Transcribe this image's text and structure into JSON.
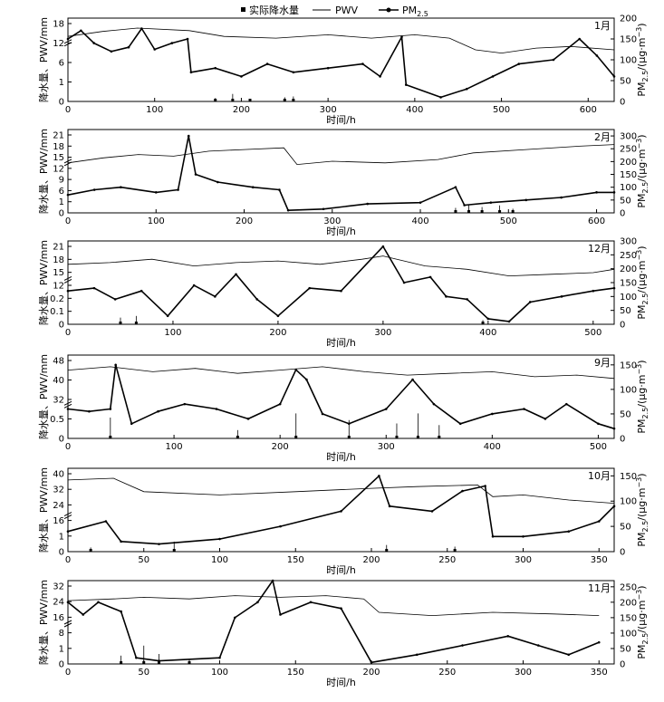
{
  "legend": {
    "items": [
      {
        "label": "实际降水量",
        "marker": "square"
      },
      {
        "label": "PWV",
        "marker": "line"
      },
      {
        "label": "PM",
        "sub": "2.5",
        "marker": "line-dot"
      }
    ]
  },
  "labels": {
    "xlabel": "时间/h",
    "ylabel_left": "降水量、PWV/mm",
    "ylabel_right_pre": "PM",
    "ylabel_right_sub": "2.5",
    "ylabel_right_post": "/(μg·m",
    "ylabel_right_sup": "−3",
    "ylabel_right_end": ")"
  },
  "colors": {
    "line": "#000000",
    "background": "#ffffff"
  },
  "chart_data": [
    {
      "type": "line",
      "month": "1月",
      "xlim": [
        0,
        630
      ],
      "xticks": [
        0,
        100,
        200,
        300,
        400,
        500,
        600
      ],
      "left_ticks": [
        "0",
        "1",
        "6",
        "12",
        "18"
      ],
      "right_ylim": [
        0,
        200
      ],
      "right_ticks": [
        0,
        50,
        100,
        150,
        200
      ],
      "pwv_level": 0.72,
      "pwv": [
        [
          0,
          0.78
        ],
        [
          40,
          0.84
        ],
        [
          80,
          0.88
        ],
        [
          140,
          0.85
        ],
        [
          180,
          0.78
        ],
        [
          240,
          0.76
        ],
        [
          300,
          0.8
        ],
        [
          350,
          0.76
        ],
        [
          400,
          0.8
        ],
        [
          440,
          0.76
        ],
        [
          470,
          0.62
        ],
        [
          500,
          0.58
        ],
        [
          540,
          0.64
        ],
        [
          580,
          0.66
        ],
        [
          630,
          0.62
        ]
      ],
      "pm25": [
        [
          0,
          150
        ],
        [
          15,
          170
        ],
        [
          30,
          140
        ],
        [
          50,
          120
        ],
        [
          70,
          130
        ],
        [
          85,
          175
        ],
        [
          100,
          125
        ],
        [
          120,
          140
        ],
        [
          138,
          150
        ],
        [
          142,
          70
        ],
        [
          170,
          80
        ],
        [
          200,
          60
        ],
        [
          230,
          90
        ],
        [
          260,
          70
        ],
        [
          300,
          80
        ],
        [
          340,
          90
        ],
        [
          360,
          60
        ],
        [
          385,
          155
        ],
        [
          390,
          40
        ],
        [
          430,
          10
        ],
        [
          460,
          30
        ],
        [
          490,
          60
        ],
        [
          520,
          90
        ],
        [
          560,
          100
        ],
        [
          590,
          150
        ],
        [
          610,
          110
        ],
        [
          630,
          60
        ]
      ],
      "precip": [
        [
          170,
          4
        ],
        [
          190,
          9
        ],
        [
          210,
          3
        ],
        [
          250,
          5
        ],
        [
          260,
          6
        ]
      ]
    },
    {
      "type": "line",
      "month": "2月",
      "xlim": [
        0,
        620
      ],
      "xticks": [
        0,
        100,
        200,
        300,
        400,
        500,
        600
      ],
      "left_ticks": [
        "0",
        "1",
        "6",
        "9",
        "12",
        "15",
        "18",
        "21"
      ],
      "right_ylim": [
        0,
        325
      ],
      "right_ticks": [
        0,
        50,
        100,
        150,
        200,
        250,
        300
      ],
      "pwv_level": 0.62,
      "pwv": [
        [
          0,
          0.6
        ],
        [
          40,
          0.66
        ],
        [
          80,
          0.7
        ],
        [
          120,
          0.68
        ],
        [
          160,
          0.74
        ],
        [
          200,
          0.76
        ],
        [
          245,
          0.78
        ],
        [
          260,
          0.58
        ],
        [
          300,
          0.62
        ],
        [
          360,
          0.6
        ],
        [
          420,
          0.64
        ],
        [
          460,
          0.72
        ],
        [
          520,
          0.76
        ],
        [
          580,
          0.8
        ],
        [
          620,
          0.82
        ]
      ],
      "pm25": [
        [
          0,
          70
        ],
        [
          30,
          90
        ],
        [
          60,
          100
        ],
        [
          100,
          80
        ],
        [
          125,
          90
        ],
        [
          137,
          300
        ],
        [
          145,
          150
        ],
        [
          170,
          120
        ],
        [
          210,
          100
        ],
        [
          240,
          90
        ],
        [
          250,
          10
        ],
        [
          290,
          15
        ],
        [
          340,
          35
        ],
        [
          400,
          40
        ],
        [
          440,
          100
        ],
        [
          450,
          30
        ],
        [
          480,
          40
        ],
        [
          520,
          50
        ],
        [
          560,
          60
        ],
        [
          600,
          80
        ],
        [
          620,
          80
        ]
      ],
      "precip": [
        [
          440,
          6
        ],
        [
          455,
          10
        ],
        [
          470,
          7
        ],
        [
          490,
          9
        ],
        [
          505,
          5
        ]
      ]
    },
    {
      "type": "line",
      "month": "12月",
      "xlim": [
        0,
        520
      ],
      "xticks": [
        0,
        100,
        200,
        300,
        400,
        500
      ],
      "left_ticks": [
        "0",
        "0.1",
        "0.2",
        "12",
        "15",
        "18",
        "21"
      ],
      "right_ylim": [
        0,
        300
      ],
      "right_ticks": [
        0,
        50,
        100,
        150,
        200,
        250,
        300
      ],
      "pwv_level": 0.55,
      "pwv": [
        [
          0,
          0.72
        ],
        [
          40,
          0.74
        ],
        [
          80,
          0.78
        ],
        [
          120,
          0.7
        ],
        [
          160,
          0.74
        ],
        [
          200,
          0.76
        ],
        [
          240,
          0.72
        ],
        [
          280,
          0.78
        ],
        [
          300,
          0.82
        ],
        [
          340,
          0.7
        ],
        [
          380,
          0.66
        ],
        [
          420,
          0.58
        ],
        [
          460,
          0.6
        ],
        [
          500,
          0.62
        ],
        [
          520,
          0.66
        ]
      ],
      "pm25": [
        [
          0,
          120
        ],
        [
          25,
          130
        ],
        [
          45,
          90
        ],
        [
          70,
          120
        ],
        [
          95,
          30
        ],
        [
          120,
          140
        ],
        [
          140,
          100
        ],
        [
          160,
          180
        ],
        [
          180,
          90
        ],
        [
          200,
          30
        ],
        [
          230,
          130
        ],
        [
          260,
          120
        ],
        [
          300,
          280
        ],
        [
          320,
          150
        ],
        [
          345,
          170
        ],
        [
          360,
          100
        ],
        [
          380,
          90
        ],
        [
          400,
          20
        ],
        [
          420,
          10
        ],
        [
          440,
          80
        ],
        [
          470,
          100
        ],
        [
          500,
          120
        ],
        [
          520,
          130
        ]
      ],
      "precip": [
        [
          50,
          8
        ],
        [
          65,
          10
        ],
        [
          395,
          5
        ]
      ]
    },
    {
      "type": "line",
      "month": "9月",
      "xlim": [
        0,
        515
      ],
      "xticks": [
        0,
        100,
        200,
        300,
        400,
        500
      ],
      "left_ticks": [
        "0",
        "0.5",
        "32",
        "40",
        "48"
      ],
      "right_ylim": [
        0,
        170
      ],
      "right_ticks": [
        0,
        50,
        100,
        150
      ],
      "pwv_level": 0.42,
      "pwv": [
        [
          0,
          0.82
        ],
        [
          40,
          0.86
        ],
        [
          80,
          0.8
        ],
        [
          120,
          0.84
        ],
        [
          160,
          0.78
        ],
        [
          200,
          0.82
        ],
        [
          240,
          0.86
        ],
        [
          280,
          0.8
        ],
        [
          320,
          0.76
        ],
        [
          360,
          0.78
        ],
        [
          400,
          0.8
        ],
        [
          440,
          0.74
        ],
        [
          480,
          0.76
        ],
        [
          515,
          0.72
        ]
      ],
      "pm25": [
        [
          0,
          60
        ],
        [
          20,
          55
        ],
        [
          40,
          60
        ],
        [
          45,
          150
        ],
        [
          60,
          30
        ],
        [
          85,
          55
        ],
        [
          110,
          70
        ],
        [
          140,
          60
        ],
        [
          170,
          40
        ],
        [
          200,
          70
        ],
        [
          215,
          140
        ],
        [
          225,
          120
        ],
        [
          240,
          50
        ],
        [
          265,
          30
        ],
        [
          300,
          60
        ],
        [
          325,
          120
        ],
        [
          345,
          70
        ],
        [
          370,
          30
        ],
        [
          400,
          50
        ],
        [
          430,
          60
        ],
        [
          450,
          40
        ],
        [
          470,
          70
        ],
        [
          500,
          30
        ],
        [
          515,
          20
        ]
      ],
      "precip": [
        [
          40,
          25
        ],
        [
          160,
          10
        ],
        [
          215,
          30
        ],
        [
          265,
          22
        ],
        [
          310,
          18
        ],
        [
          330,
          30
        ],
        [
          350,
          16
        ]
      ]
    },
    {
      "type": "line",
      "month": "10月",
      "xlim": [
        0,
        360
      ],
      "xticks": [
        0,
        50,
        100,
        150,
        200,
        250,
        300,
        350
      ],
      "left_ticks": [
        "0",
        "1",
        "16",
        "24",
        "32",
        "40"
      ],
      "right_ylim": [
        0,
        165
      ],
      "right_ticks": [
        0,
        50,
        100,
        150
      ],
      "pwv_level": 0.45,
      "pwv": [
        [
          0,
          0.86
        ],
        [
          30,
          0.88
        ],
        [
          50,
          0.72
        ],
        [
          100,
          0.68
        ],
        [
          150,
          0.72
        ],
        [
          200,
          0.76
        ],
        [
          230,
          0.78
        ],
        [
          270,
          0.8
        ],
        [
          280,
          0.66
        ],
        [
          300,
          0.68
        ],
        [
          330,
          0.62
        ],
        [
          360,
          0.58
        ]
      ],
      "pm25": [
        [
          0,
          40
        ],
        [
          25,
          60
        ],
        [
          35,
          20
        ],
        [
          60,
          15
        ],
        [
          100,
          25
        ],
        [
          140,
          50
        ],
        [
          180,
          80
        ],
        [
          205,
          150
        ],
        [
          212,
          90
        ],
        [
          240,
          80
        ],
        [
          260,
          120
        ],
        [
          275,
          130
        ],
        [
          280,
          30
        ],
        [
          300,
          30
        ],
        [
          330,
          40
        ],
        [
          350,
          60
        ],
        [
          360,
          90
        ]
      ],
      "precip": [
        [
          15,
          5
        ],
        [
          70,
          12
        ],
        [
          210,
          8
        ],
        [
          255,
          6
        ]
      ]
    },
    {
      "type": "line",
      "month": "11月",
      "xlim": [
        0,
        360
      ],
      "xticks": [
        0,
        50,
        100,
        150,
        200,
        250,
        300,
        350
      ],
      "left_ticks": [
        "0",
        "1",
        "8",
        "16",
        "24",
        "32"
      ],
      "right_ylim": [
        0,
        270
      ],
      "right_ticks": [
        0,
        50,
        100,
        150,
        200,
        250
      ],
      "pwv_level": 0.5,
      "pwv": [
        [
          0,
          0.76
        ],
        [
          30,
          0.78
        ],
        [
          50,
          0.8
        ],
        [
          80,
          0.78
        ],
        [
          110,
          0.82
        ],
        [
          140,
          0.8
        ],
        [
          170,
          0.82
        ],
        [
          195,
          0.78
        ],
        [
          205,
          0.62
        ],
        [
          240,
          0.58
        ],
        [
          280,
          0.62
        ],
        [
          320,
          0.6
        ],
        [
          350,
          0.58
        ]
      ],
      "pm25": [
        [
          0,
          200
        ],
        [
          10,
          160
        ],
        [
          20,
          200
        ],
        [
          35,
          170
        ],
        [
          45,
          20
        ],
        [
          60,
          10
        ],
        [
          100,
          20
        ],
        [
          110,
          150
        ],
        [
          125,
          200
        ],
        [
          135,
          270
        ],
        [
          140,
          160
        ],
        [
          160,
          200
        ],
        [
          180,
          180
        ],
        [
          200,
          5
        ],
        [
          230,
          30
        ],
        [
          260,
          60
        ],
        [
          290,
          90
        ],
        [
          310,
          60
        ],
        [
          330,
          30
        ],
        [
          350,
          70
        ]
      ],
      "precip": [
        [
          35,
          10
        ],
        [
          50,
          22
        ],
        [
          60,
          12
        ],
        [
          80,
          6
        ]
      ]
    }
  ]
}
